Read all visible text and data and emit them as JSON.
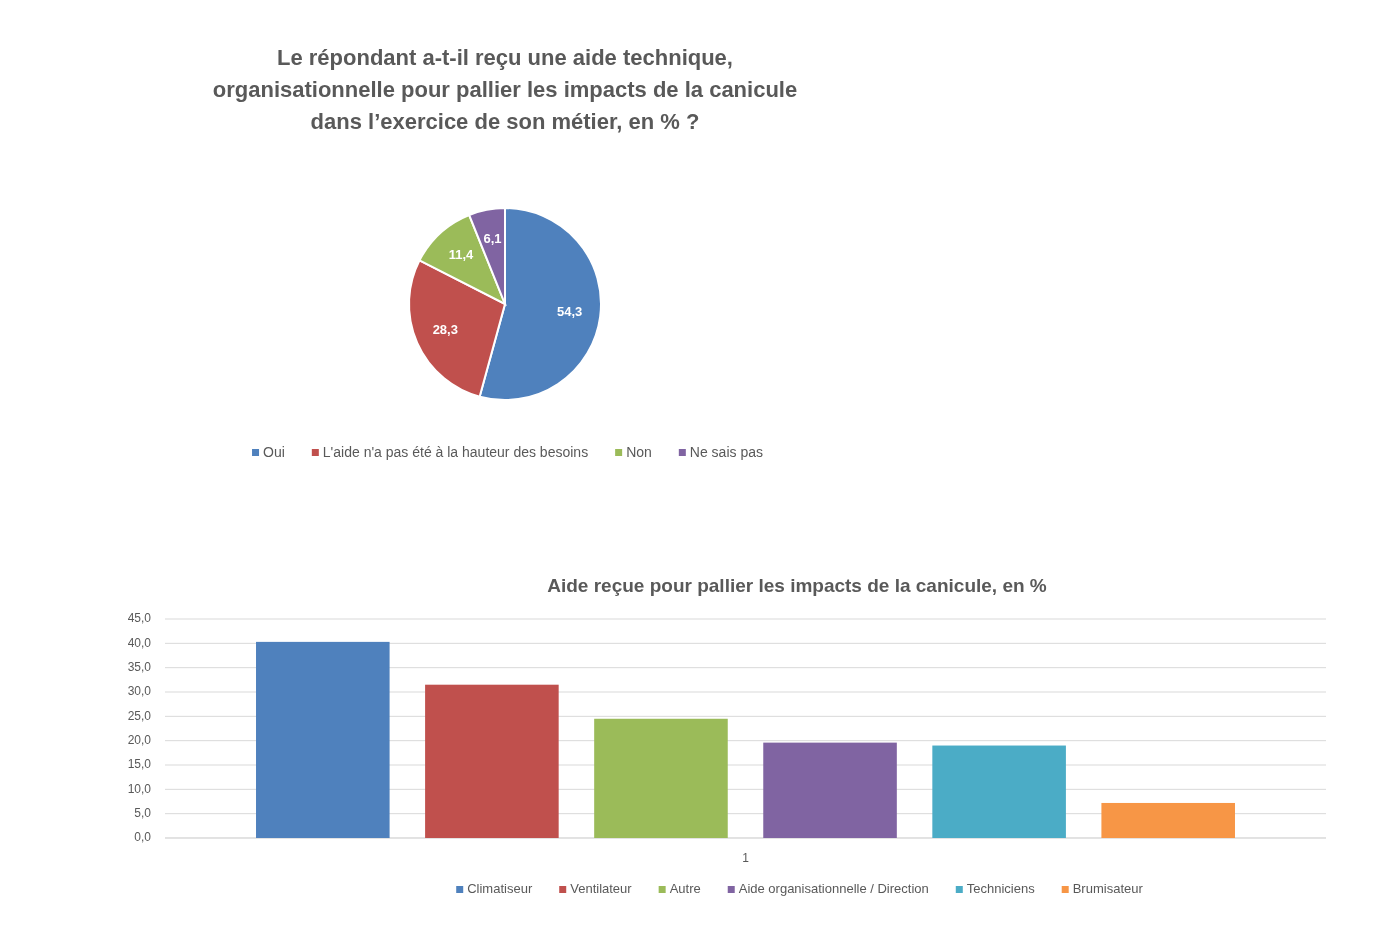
{
  "chart_data": [
    {
      "type": "pie",
      "title": "Le répondant a-t-il reçu une aide technique, organisationnelle pour pallier les impacts de la canicule dans l’exercice de son métier, en % ?",
      "categories": [
        "Oui",
        "L'aide n'a pas été à la hauteur des besoins",
        "Non",
        "Ne sais pas"
      ],
      "values": [
        54.3,
        28.3,
        11.4,
        6.1
      ],
      "value_labels": [
        "54,3",
        "28,3",
        "11,4",
        "6,1"
      ],
      "colors": [
        "#4f81bd",
        "#c0504d",
        "#9bbb59",
        "#8064a2"
      ],
      "legend": "bottom"
    },
    {
      "type": "bar",
      "title": "Aide reçue pour pallier les impacts de la canicule, en %",
      "categories": [
        "1"
      ],
      "series": [
        {
          "name": "Climatiseur",
          "color": "#4f81bd",
          "values": [
            40.3
          ]
        },
        {
          "name": "Ventilateur",
          "color": "#c0504d",
          "values": [
            31.5
          ]
        },
        {
          "name": "Autre",
          "color": "#9bbb59",
          "values": [
            24.5
          ]
        },
        {
          "name": "Aide organisationnelle / Direction",
          "color": "#8064a2",
          "values": [
            19.6
          ]
        },
        {
          "name": "Techniciens",
          "color": "#4bacc6",
          "values": [
            19.0
          ]
        },
        {
          "name": "Brumisateur",
          "color": "#f79646",
          "values": [
            7.2
          ]
        }
      ],
      "ylim": [
        0,
        45
      ],
      "yticks": [
        {
          "value": 0,
          "label": "0,0"
        },
        {
          "value": 5,
          "label": "5,0"
        },
        {
          "value": 10,
          "label": "10,0"
        },
        {
          "value": 15,
          "label": "15,0"
        },
        {
          "value": 20,
          "label": "20,0"
        },
        {
          "value": 25,
          "label": "25,0"
        },
        {
          "value": 30,
          "label": "30,0"
        },
        {
          "value": 35,
          "label": "35,0"
        },
        {
          "value": 40,
          "label": "40,0"
        },
        {
          "value": 45,
          "label": "45,0"
        }
      ],
      "grid": "y",
      "legend": "bottom"
    }
  ]
}
